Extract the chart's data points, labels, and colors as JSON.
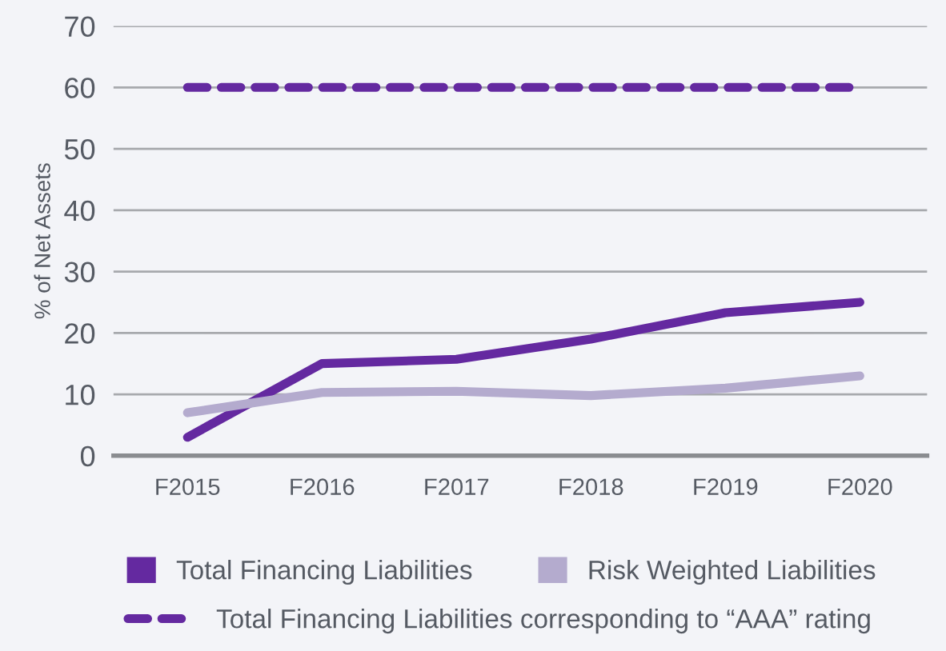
{
  "chart_data": {
    "type": "line",
    "ylabel": "% of Net Assets",
    "categories": [
      "F2015",
      "F2016",
      "F2017",
      "F2018",
      "F2019",
      "F2020"
    ],
    "series": [
      {
        "name": "Total Financing Liabilities",
        "color": "#6429a0",
        "values": [
          3,
          15,
          15.7,
          19,
          23.3,
          25
        ]
      },
      {
        "name": "Risk Weighted Liabilities",
        "color": "#b4abce",
        "values": [
          7,
          10.3,
          10.5,
          9.8,
          11,
          13
        ]
      },
      {
        "name": "Total Financing Liabilities corresponding to “AAA” rating",
        "color": "#6429a0",
        "line_style": "dashed",
        "values": [
          60,
          60,
          60,
          60,
          60,
          60
        ]
      }
    ],
    "ylim": [
      0,
      70
    ],
    "yticks": [
      0,
      10,
      20,
      30,
      40,
      50,
      60,
      70
    ],
    "grid": "y",
    "legend": "bottom",
    "marker": "none"
  }
}
